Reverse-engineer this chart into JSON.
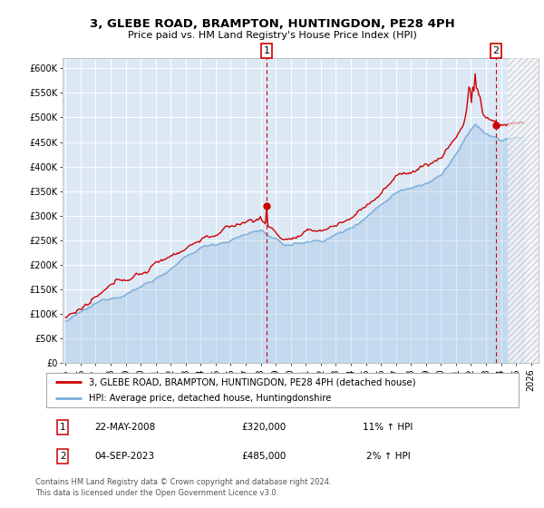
{
  "title1": "3, GLEBE ROAD, BRAMPTON, HUNTINGDON, PE28 4PH",
  "title2": "Price paid vs. HM Land Registry's House Price Index (HPI)",
  "ylim": [
    0,
    620000
  ],
  "yticks": [
    0,
    50000,
    100000,
    150000,
    200000,
    250000,
    300000,
    350000,
    400000,
    450000,
    500000,
    550000,
    600000
  ],
  "hpi_color": "#7aaddb",
  "price_color": "#cc0000",
  "background_color": "#dde8f5",
  "grid_color": "#ffffff",
  "legend_label1": "3, GLEBE ROAD, BRAMPTON, HUNTINGDON, PE28 4PH (detached house)",
  "legend_label2": "HPI: Average price, detached house, Huntingdonshire",
  "sale1_date": "22-MAY-2008",
  "sale1_price": "£320,000",
  "sale1_hpi": "11% ↑ HPI",
  "sale2_date": "04-SEP-2023",
  "sale2_price": "£485,000",
  "sale2_hpi": "2% ↑ HPI",
  "footer1": "Contains HM Land Registry data © Crown copyright and database right 2024.",
  "footer2": "This data is licensed under the Open Government Licence v3.0.",
  "sale1_year": 2008.38,
  "sale1_value": 320000,
  "sale2_year": 2023.67,
  "sale2_value": 485000,
  "hatch_start": 2024.42,
  "xlim_left": 1994.8,
  "xlim_right": 2026.5
}
